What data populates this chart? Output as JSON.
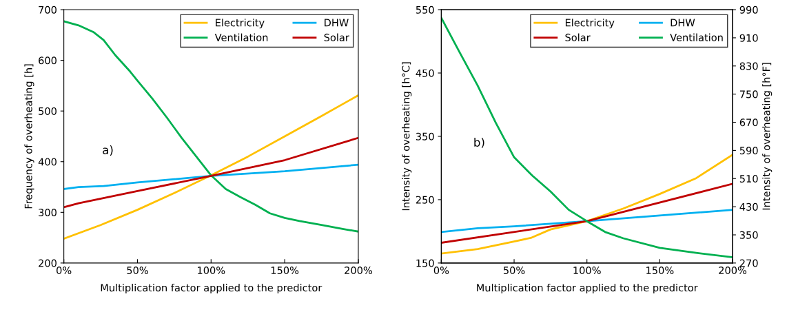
{
  "chart_data": [
    {
      "type": "line",
      "xlabel": "Multiplication factor applied to the predictor",
      "ylabel": "Frequency of overheating [h]",
      "annotations": [
        "a)"
      ],
      "legend": "top right",
      "grid": false,
      "marker": "none",
      "line_style": "solid",
      "xlim": [
        0,
        200
      ],
      "xticks": [
        {
          "value": 0,
          "label": "0%"
        },
        {
          "value": 50,
          "label": "50%"
        },
        {
          "value": 100,
          "label": "100%"
        },
        {
          "value": 150,
          "label": "150%"
        },
        {
          "value": 200,
          "label": "200%"
        }
      ],
      "ylim": [
        200,
        700
      ],
      "yticks": [
        200,
        300,
        400,
        500,
        600,
        700
      ],
      "series": [
        {
          "name": "Electricity",
          "color": "#ffc000",
          "x": [
            0,
            25,
            50,
            75,
            100,
            125,
            150,
            175,
            200
          ],
          "values": [
            248,
            275,
            305,
            338,
            373,
            410,
            450,
            490,
            531
          ]
        },
        {
          "name": "DHW",
          "color": "#00b0f0",
          "x": [
            0,
            10,
            27,
            50,
            100,
            150,
            200
          ],
          "values": [
            346,
            350,
            352,
            359,
            372,
            381,
            394
          ]
        },
        {
          "name": "Ventilation",
          "color": "#00b050",
          "x": [
            0,
            10,
            20,
            27,
            35,
            45,
            50,
            60,
            70,
            80,
            90,
            100,
            110,
            120,
            130,
            140,
            150,
            160,
            175,
            190,
            200
          ],
          "values": [
            677,
            669,
            656,
            640,
            610,
            578,
            560,
            525,
            487,
            447,
            410,
            373,
            346,
            330,
            315,
            298,
            289,
            283,
            275,
            267,
            262
          ]
        },
        {
          "name": "Solar",
          "color": "#c00000",
          "x": [
            0,
            10,
            50,
            100,
            150,
            200
          ],
          "values": [
            310,
            318,
            342,
            372,
            403,
            447
          ]
        }
      ]
    },
    {
      "type": "line",
      "xlabel": "Multiplication factor applied to the predictor",
      "ylabel": "Intensity of overheating [h°C]",
      "y2label": "Intensity of overheating [h°F]",
      "annotations": [
        "b)"
      ],
      "legend": "top right",
      "grid": false,
      "marker": "none",
      "line_style": "solid",
      "xlim": [
        0,
        200
      ],
      "xticks": [
        {
          "value": 0,
          "label": "0%"
        },
        {
          "value": 50,
          "label": "50%"
        },
        {
          "value": 100,
          "label": "100%"
        },
        {
          "value": 150,
          "label": "150%"
        },
        {
          "value": 200,
          "label": "200%"
        }
      ],
      "ylim": [
        150,
        550
      ],
      "yticks": [
        150,
        250,
        350,
        450,
        550
      ],
      "y2lim": [
        270,
        990
      ],
      "y2ticks": [
        270,
        350,
        430,
        510,
        590,
        670,
        750,
        830,
        910,
        990
      ],
      "series": [
        {
          "name": "Electricity",
          "color": "#ffc000",
          "x": [
            0,
            25,
            50,
            62,
            75,
            100,
            125,
            150,
            175,
            200
          ],
          "values": [
            165,
            172,
            184,
            190,
            203,
            216,
            236,
            259,
            284,
            321
          ]
        },
        {
          "name": "DHW",
          "color": "#00b0f0",
          "x": [
            0,
            25,
            50,
            100,
            150,
            200
          ],
          "values": [
            199,
            205,
            208,
            216,
            225,
            234
          ]
        },
        {
          "name": "Solar",
          "color": "#c00000",
          "x": [
            0,
            100,
            200
          ],
          "values": [
            182,
            216,
            275
          ]
        },
        {
          "name": "Ventilation",
          "color": "#00b050",
          "x": [
            0,
            12.5,
            25,
            37.5,
            50,
            62.5,
            75,
            87.5,
            100,
            112.5,
            125,
            150,
            175,
            200
          ],
          "values": [
            537,
            483,
            430,
            371,
            317,
            288,
            263,
            234,
            216,
            199,
            189,
            174,
            166,
            159
          ]
        }
      ]
    }
  ]
}
